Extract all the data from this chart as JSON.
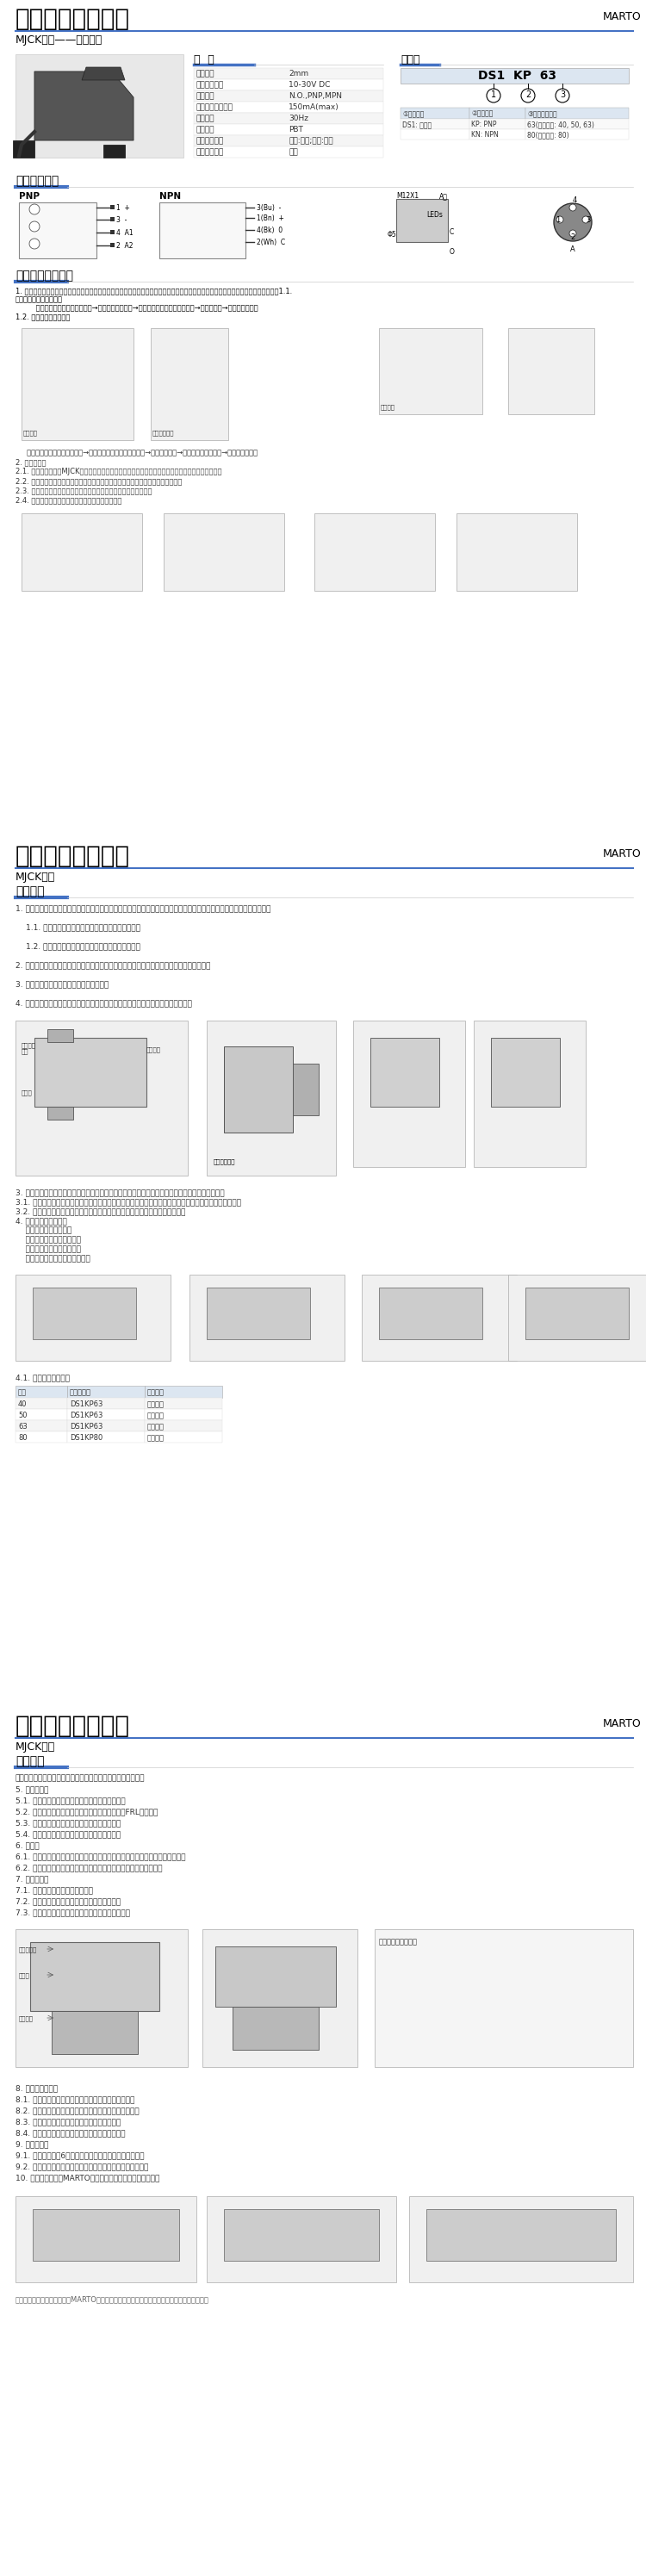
{
  "title": "强力焊接夹紧气缸",
  "brand": "MARTO",
  "subtitle": "MJCK系列——电传感器",
  "page1_sections": {
    "spec_title": "规 格",
    "order_title": "订购码",
    "spec_items": [
      [
        "作动范围",
        "2mm"
      ],
      [
        "使用电压范围",
        "10-30V DC"
      ],
      [
        "输出性能",
        "N.O.,PNP,MPN"
      ],
      [
        "直流额定工作电流",
        "150mA(max)"
      ],
      [
        "开关频率",
        "30Hz"
      ],
      [
        "外壳材料",
        "PBT"
      ],
      [
        "开关状态指示",
        "关闭:红色;打开:黄色"
      ],
      [
        "工作电压指示",
        "绿色"
      ]
    ],
    "order_code": "DS1 KP 63",
    "order_items": [
      [
        "①规格代号",
        "②形式代号",
        "③适用缸径代号"
      ],
      [
        "DS1: 传感器",
        "KP: PNP",
        "63(适用缸径: 40, 50, 63)"
      ],
      [
        "",
        "KN: NPN",
        "80(适用缸径: 80)"
      ]
    ],
    "wiring_title": "传感器接线图",
    "install_title": "传感器安装与使用"
  },
  "page2_title": "强力焊接夹紧气缸",
  "page2_brand": "MARTO",
  "page2_subtitle": "MJCK系列",
  "page2_section": "安装指南",
  "page3_title": "强力焊接夹紧气缸",
  "page3_brand": "MARTO",
  "page3_subtitle": "MJCK系列",
  "bg_color": "#ffffff",
  "header_line_color": "#4472C4",
  "title_color": "#000000",
  "brand_color": "#000000",
  "text_color": "#333333",
  "table_header_bg": "#4472C4",
  "table_header_fg": "#ffffff",
  "section_line_color": "#4472C4",
  "divider_color": "#cccccc"
}
